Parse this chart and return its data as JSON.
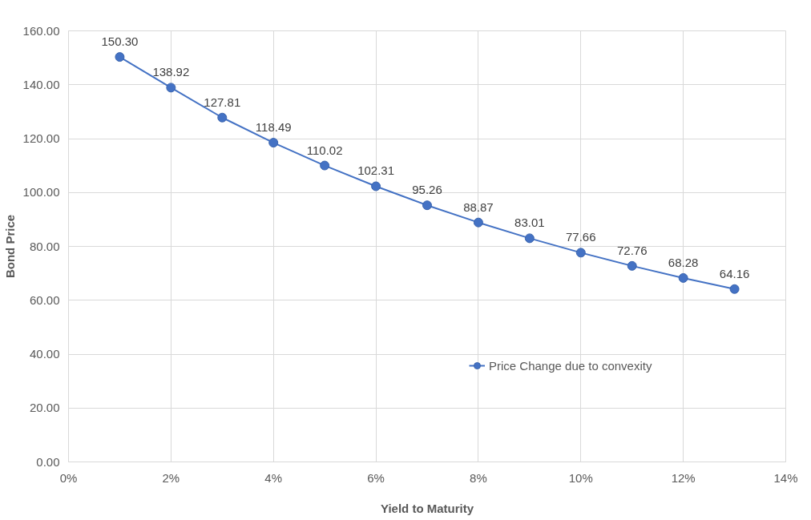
{
  "chart_data": {
    "type": "line",
    "xlabel": "Yield to Maturity",
    "ylabel": "Bond Price",
    "x": [
      1,
      2,
      3,
      4,
      5,
      6,
      7,
      8,
      9,
      10,
      11,
      12,
      13
    ],
    "series": [
      {
        "name": "Price Change due to convexity",
        "color": "#4472c4",
        "values": [
          150.3,
          138.92,
          127.81,
          118.49,
          110.02,
          102.31,
          95.26,
          88.87,
          83.01,
          77.66,
          72.76,
          68.28,
          64.16
        ],
        "value_labels": [
          "150.30",
          "138.92",
          "127.81",
          "118.49",
          "110.02",
          "102.31",
          "95.26",
          "88.87",
          "83.01",
          "77.66",
          "72.76",
          "68.28",
          "64.16"
        ]
      }
    ],
    "xlim": [
      0,
      14
    ],
    "xticks": [
      {
        "value": 0,
        "label": "0%"
      },
      {
        "value": 2,
        "label": "2%"
      },
      {
        "value": 4,
        "label": "4%"
      },
      {
        "value": 6,
        "label": "6%"
      },
      {
        "value": 8,
        "label": "8%"
      },
      {
        "value": 10,
        "label": "10%"
      },
      {
        "value": 12,
        "label": "12%"
      },
      {
        "value": 14,
        "label": "14%"
      }
    ],
    "ylim": [
      0,
      160
    ],
    "yticks": [
      {
        "value": 0,
        "label": "0.00"
      },
      {
        "value": 20,
        "label": "20.00"
      },
      {
        "value": 40,
        "label": "40.00"
      },
      {
        "value": 60,
        "label": "60.00"
      },
      {
        "value": 80,
        "label": "80.00"
      },
      {
        "value": 100,
        "label": "100.00"
      },
      {
        "value": 120,
        "label": "120.00"
      },
      {
        "value": 140,
        "label": "140.00"
      },
      {
        "value": 160,
        "label": "160.00"
      }
    ],
    "grid": true,
    "legend": "right",
    "marker": "circle",
    "line_style": "solid"
  }
}
